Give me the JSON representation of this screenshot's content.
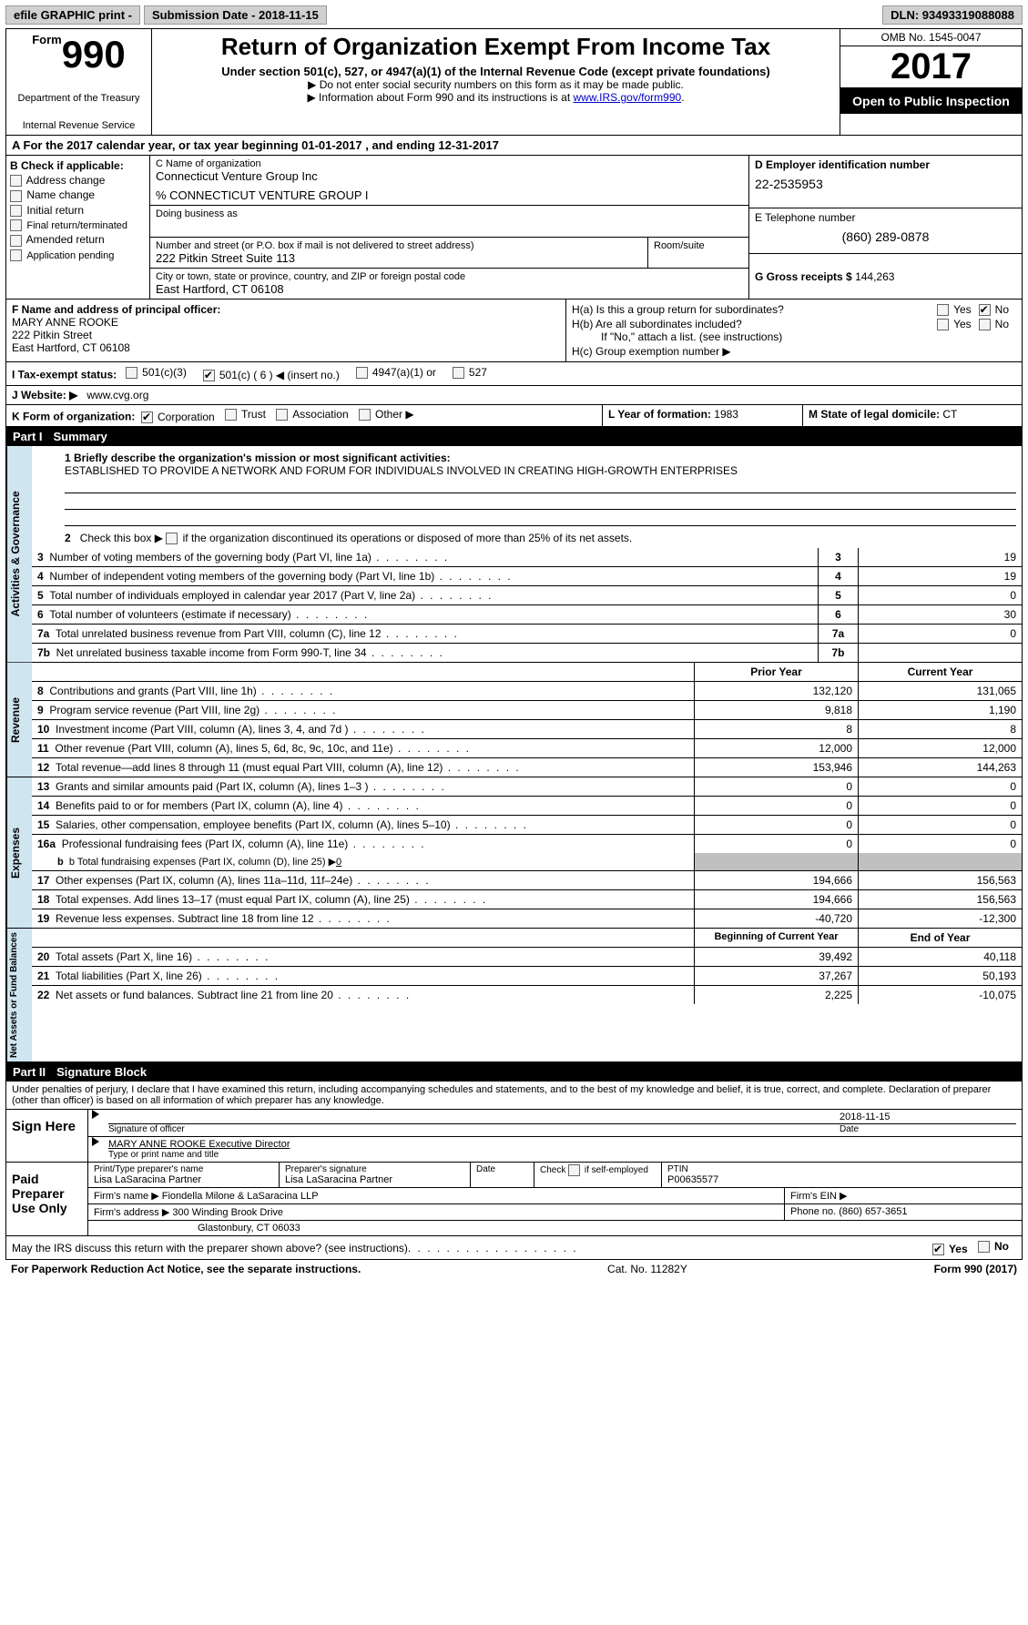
{
  "topbar": {
    "efile": "efile GRAPHIC print -",
    "submission": "Submission Date - 2018-11-15",
    "dln": "DLN: 93493319088088"
  },
  "header": {
    "form_label": "Form",
    "form_num": "990",
    "dept1": "Department of the Treasury",
    "dept2": "Internal Revenue Service",
    "title": "Return of Organization Exempt From Income Tax",
    "subtitle": "Under section 501(c), 527, or 4947(a)(1) of the Internal Revenue Code (except private foundations)",
    "note1": "▶ Do not enter social security numbers on this form as it may be made public.",
    "note2_a": "▶ Information about Form 990 and its instructions is at ",
    "note2_link": "www.IRS.gov/form990",
    "omb": "OMB No. 1545-0047",
    "year": "2017",
    "open": "Open to Public Inspection"
  },
  "a": {
    "text": "A  For the 2017 calendar year, or tax year beginning 01-01-2017   , and ending 12-31-2017"
  },
  "b": {
    "label": "B Check if applicable:",
    "items": [
      "Address change",
      "Name change",
      "Initial return",
      "Final return/terminated",
      "Amended return",
      "Application pending"
    ]
  },
  "c": {
    "name_label": "C Name of organization",
    "name": "Connecticut Venture Group Inc",
    "care": "% CONNECTICUT VENTURE GROUP I",
    "dba_label": "Doing business as",
    "dba": "",
    "street_label": "Number and street (or P.O. box if mail is not delivered to street address)",
    "room_label": "Room/suite",
    "street": "222 Pitkin Street Suite 113",
    "city_label": "City or town, state or province, country, and ZIP or foreign postal code",
    "city": "East Hartford, CT  06108"
  },
  "d": {
    "label": "D Employer identification number",
    "val": "22-2535953"
  },
  "e": {
    "label": "E Telephone number",
    "val": "(860) 289-0878"
  },
  "g": {
    "label": "G Gross receipts $",
    "val": "144,263"
  },
  "f": {
    "label": "F  Name and address of principal officer:",
    "name": "MARY ANNE ROOKE",
    "street": "222 Pitkin Street",
    "city": "East Hartford, CT  06108"
  },
  "h": {
    "a_label": "H(a)  Is this a group return for subordinates?",
    "b_label": "H(b)  Are all subordinates included?",
    "yes": "Yes",
    "no": "No",
    "attach": "If \"No,\" attach a list. (see instructions)",
    "c_label": "H(c)  Group exemption number ▶"
  },
  "i": {
    "label": "I  Tax-exempt status:",
    "c3": "501(c)(3)",
    "c": "501(c) (",
    "c_num": "6",
    "c_end": ") ◀ (insert no.)",
    "a1": "4947(a)(1) or",
    "s527": "527"
  },
  "j": {
    "label": "J  Website: ▶",
    "val": "www.cvg.org"
  },
  "k": {
    "label": "K Form of organization:",
    "corp": "Corporation",
    "trust": "Trust",
    "assoc": "Association",
    "other": "Other ▶"
  },
  "l": {
    "label": "L Year of formation:",
    "val": "1983"
  },
  "m": {
    "label": "M State of legal domicile:",
    "val": "CT"
  },
  "parts": {
    "p1": "Part I",
    "p1t": "Summary",
    "p2": "Part II",
    "p2t": "Signature Block"
  },
  "vtabs": {
    "gov": "Activities & Governance",
    "rev": "Revenue",
    "exp": "Expenses",
    "net": "Net Assets or Fund Balances"
  },
  "summary": {
    "l1_label": "1  Briefly describe the organization's mission or most significant activities:",
    "l1_val": "ESTABLISHED TO PROVIDE A NETWORK AND FORUM FOR INDIVIDUALS INVOLVED IN CREATING HIGH-GROWTH ENTERPRISES",
    "l2": "2   Check this box ▶        if the organization discontinued its operations or disposed of more than 25% of its net assets.",
    "rows_gov": [
      {
        "n": "3",
        "t": "Number of voting members of the governing body (Part VI, line 1a)",
        "v": "19"
      },
      {
        "n": "4",
        "t": "Number of independent voting members of the governing body (Part VI, line 1b)",
        "v": "19"
      },
      {
        "n": "5",
        "t": "Total number of individuals employed in calendar year 2017 (Part V, line 2a)",
        "v": "0"
      },
      {
        "n": "6",
        "t": "Total number of volunteers (estimate if necessary)",
        "v": "30"
      },
      {
        "n": "7a",
        "t": "Total unrelated business revenue from Part VIII, column (C), line 12",
        "v": "0"
      },
      {
        "n": "7b",
        "t": "Net unrelated business taxable income from Form 990-T, line 34",
        "v": ""
      }
    ],
    "hdr_py": "Prior Year",
    "hdr_cy": "Current Year",
    "rows_rev": [
      {
        "n": "8",
        "t": "Contributions and grants (Part VIII, line 1h)",
        "py": "132,120",
        "cy": "131,065"
      },
      {
        "n": "9",
        "t": "Program service revenue (Part VIII, line 2g)",
        "py": "9,818",
        "cy": "1,190"
      },
      {
        "n": "10",
        "t": "Investment income (Part VIII, column (A), lines 3, 4, and 7d )",
        "py": "8",
        "cy": "8"
      },
      {
        "n": "11",
        "t": "Other revenue (Part VIII, column (A), lines 5, 6d, 8c, 9c, 10c, and 11e)",
        "py": "12,000",
        "cy": "12,000"
      },
      {
        "n": "12",
        "t": "Total revenue—add lines 8 through 11 (must equal Part VIII, column (A), line 12)",
        "py": "153,946",
        "cy": "144,263"
      }
    ],
    "rows_exp": [
      {
        "n": "13",
        "t": "Grants and similar amounts paid (Part IX, column (A), lines 1–3 )",
        "py": "0",
        "cy": "0"
      },
      {
        "n": "14",
        "t": "Benefits paid to or for members (Part IX, column (A), line 4)",
        "py": "0",
        "cy": "0"
      },
      {
        "n": "15",
        "t": "Salaries, other compensation, employee benefits (Part IX, column (A), lines 5–10)",
        "py": "0",
        "cy": "0"
      },
      {
        "n": "16a",
        "t": "Professional fundraising fees (Part IX, column (A), line 11e)",
        "py": "0",
        "cy": "0"
      }
    ],
    "l16b": "b  Total fundraising expenses (Part IX, column (D), line 25) ▶",
    "l16b_val": "0",
    "rows_exp2": [
      {
        "n": "17",
        "t": "Other expenses (Part IX, column (A), lines 11a–11d, 11f–24e)",
        "py": "194,666",
        "cy": "156,563"
      },
      {
        "n": "18",
        "t": "Total expenses. Add lines 13–17 (must equal Part IX, column (A), line 25)",
        "py": "194,666",
        "cy": "156,563"
      },
      {
        "n": "19",
        "t": "Revenue less expenses. Subtract line 18 from line 12",
        "py": "-40,720",
        "cy": "-12,300"
      }
    ],
    "hdr_bcy": "Beginning of Current Year",
    "hdr_eoy": "End of Year",
    "rows_net": [
      {
        "n": "20",
        "t": "Total assets (Part X, line 16)",
        "py": "39,492",
        "cy": "40,118"
      },
      {
        "n": "21",
        "t": "Total liabilities (Part X, line 26)",
        "py": "37,267",
        "cy": "50,193"
      },
      {
        "n": "22",
        "t": "Net assets or fund balances. Subtract line 21 from line 20",
        "py": "2,225",
        "cy": "-10,075"
      }
    ]
  },
  "sig": {
    "perjury": "Under penalties of perjury, I declare that I have examined this return, including accompanying schedules and statements, and to the best of my knowledge and belief, it is true, correct, and complete. Declaration of preparer (other than officer) is based on all information of which preparer has any knowledge.",
    "sign_here": "Sign Here",
    "sig_officer": "Signature of officer",
    "date": "Date",
    "sig_date": "2018-11-15",
    "name_title": "MARY ANNE ROOKE  Executive Director",
    "type_name": "Type or print name and title",
    "paid": "Paid Preparer Use Only",
    "prep_name_label": "Print/Type preparer's name",
    "prep_name": "Lisa LaSaracina Partner",
    "prep_sig_label": "Preparer's signature",
    "prep_sig": "Lisa LaSaracina Partner",
    "prep_date_label": "Date",
    "self_emp": "Check         if self-employed",
    "ptin_label": "PTIN",
    "ptin": "P00635577",
    "firm_name_label": "Firm's name      ▶",
    "firm_name": "Fiondella Milone & LaSaracina LLP",
    "firm_ein": "Firm's EIN ▶",
    "firm_addr_label": "Firm's address ▶",
    "firm_addr1": "300 Winding Brook Drive",
    "firm_addr2": "Glastonbury, CT  06033",
    "phone_label": "Phone no.",
    "phone": "(860) 657-3651",
    "discuss": "May the IRS discuss this return with the preparer shown above? (see instructions)"
  },
  "footer": {
    "left": "For Paperwork Reduction Act Notice, see the separate instructions.",
    "mid": "Cat. No. 11282Y",
    "right": "Form 990 (2017)"
  }
}
